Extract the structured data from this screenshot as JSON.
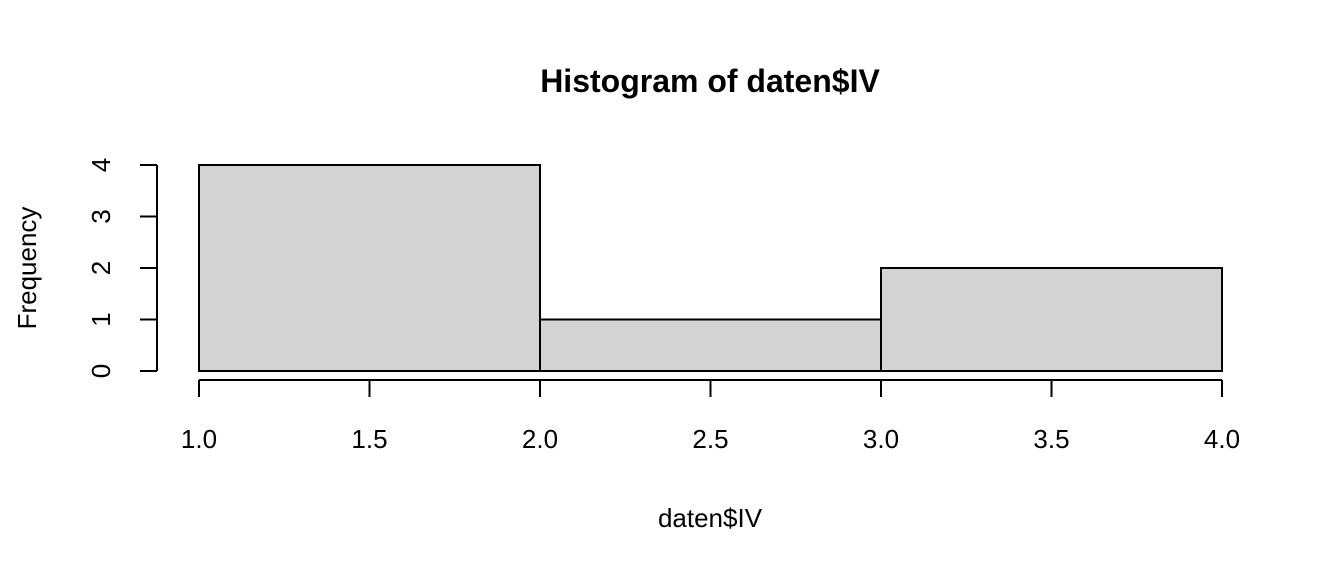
{
  "chart_data": {
    "type": "bar",
    "histogram": true,
    "title": "Histogram of daten$IV",
    "xlabel": "daten$IV",
    "ylabel": "Frequency",
    "bins": [
      {
        "from": 1.0,
        "to": 2.0,
        "count": 4
      },
      {
        "from": 2.0,
        "to": 3.0,
        "count": 1
      },
      {
        "from": 3.0,
        "to": 4.0,
        "count": 2
      }
    ],
    "xlim": [
      1.0,
      4.0
    ],
    "ylim": [
      0,
      4
    ],
    "x_ticks": [
      "1.0",
      "1.5",
      "2.0",
      "2.5",
      "3.0",
      "3.5",
      "4.0"
    ],
    "y_ticks": [
      "0",
      "1",
      "2",
      "3",
      "4"
    ],
    "bar_fill": "#d3d3d3",
    "bar_stroke": "#000000",
    "grid": false,
    "legend": "none"
  }
}
